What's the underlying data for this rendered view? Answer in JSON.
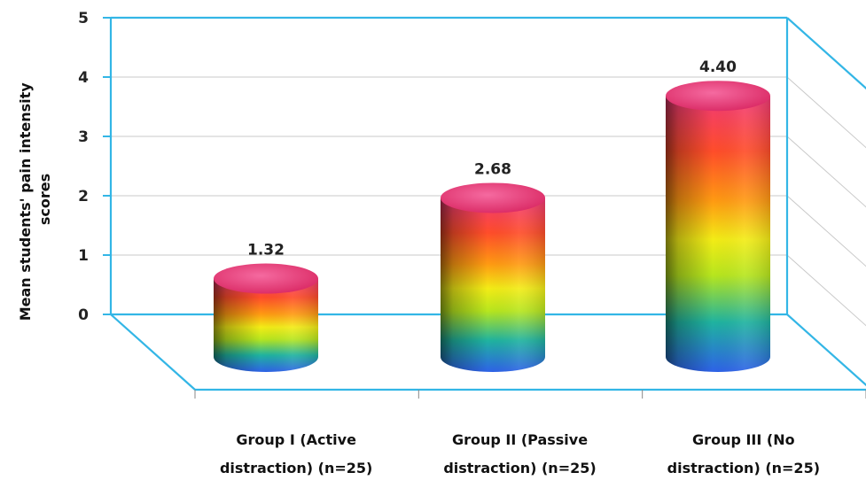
{
  "chart_data": {
    "type": "bar",
    "style": "3d-cylinder",
    "categories": [
      [
        "Group I (Active",
        "distraction) (n=25)"
      ],
      [
        "Group II (Passive",
        "distraction) (n=25)"
      ],
      [
        "Group III (No",
        "distraction) (n=25)"
      ]
    ],
    "values": [
      1.32,
      2.68,
      4.4
    ],
    "value_labels": [
      "1.32",
      "2.68",
      "4.40"
    ],
    "ylabel": [
      "Mean students' pain intensity",
      "scores"
    ],
    "ylim": [
      0,
      5
    ],
    "yticks": [
      "0",
      "1",
      "2",
      "3",
      "4",
      "5"
    ],
    "grid": true,
    "frame_color": "#33b6e6",
    "grid_color": "#c9c9c9",
    "bar_gradient": [
      "#2e62e8",
      "#1fb3a0",
      "#b7e61e",
      "#f3ec16",
      "#ff9a12",
      "#ff4d2a",
      "#f23a78"
    ],
    "bar_top_color": "#e8306e"
  }
}
